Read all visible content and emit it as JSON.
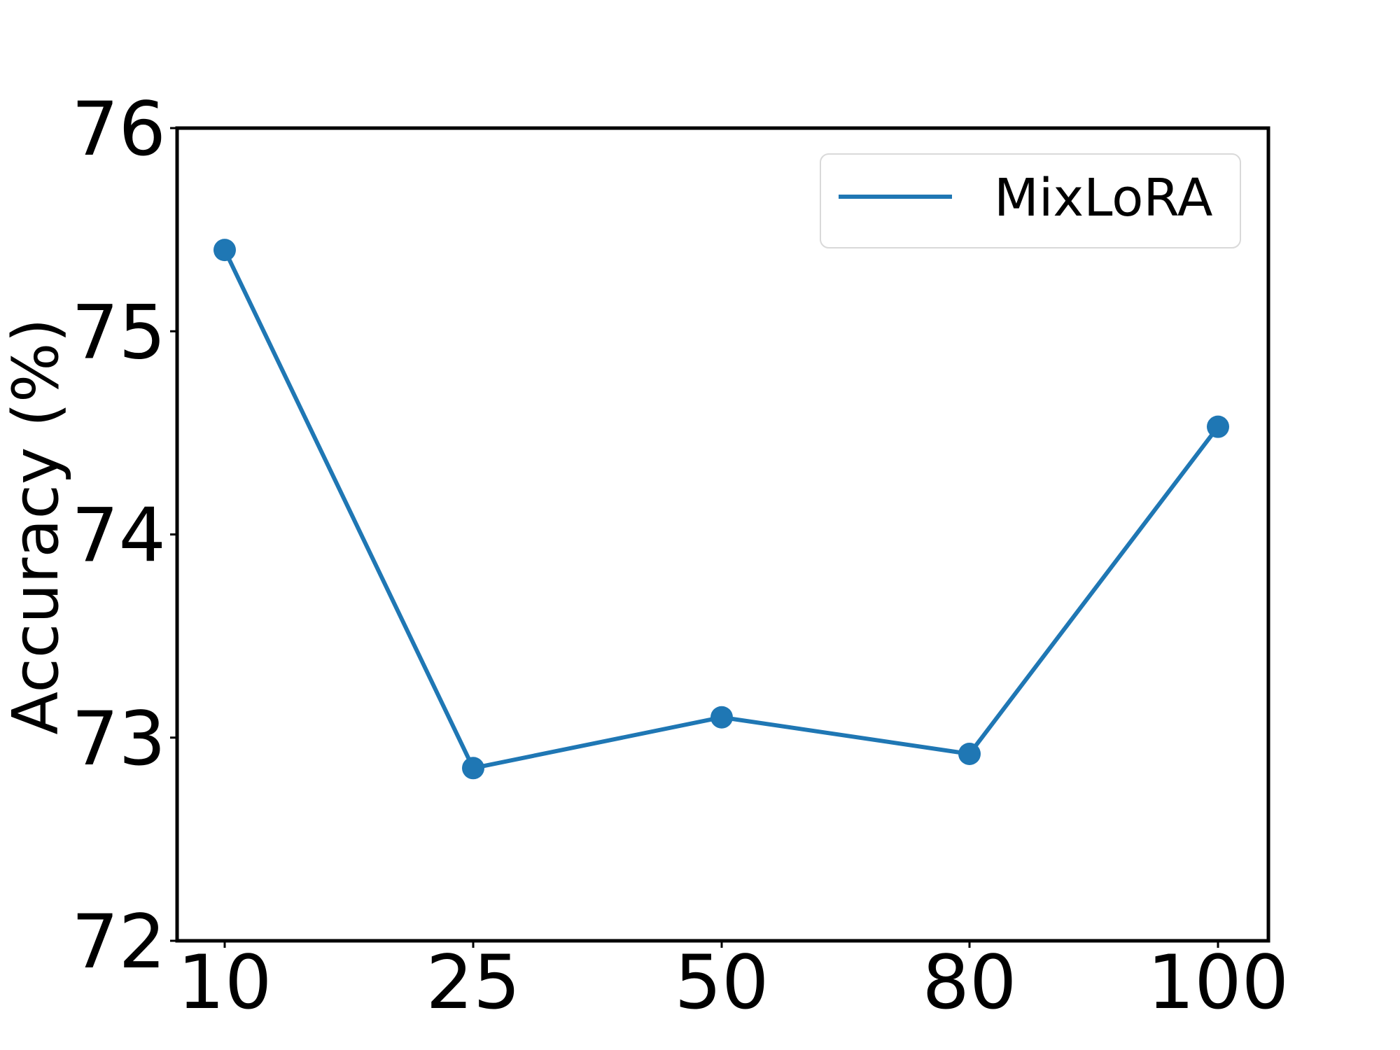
{
  "chart_data": {
    "type": "line",
    "title": "",
    "xlabel": "",
    "ylabel": "Accuracy (%)",
    "x": [
      10,
      25,
      50,
      80,
      100
    ],
    "x_tick_labels": [
      "10",
      "25",
      "50",
      "80",
      "100"
    ],
    "xscale": "categorical",
    "ylim": [
      72,
      76
    ],
    "y_ticks": [
      72,
      73,
      74,
      75,
      76
    ],
    "y_tick_labels": [
      "72",
      "73",
      "74",
      "75",
      "76"
    ],
    "grid": false,
    "legend_position": "top-right",
    "series": [
      {
        "name": "MixLoRA",
        "color": "#1f77b4",
        "marker": "circle",
        "values": [
          75.4,
          72.85,
          73.1,
          72.92,
          74.53
        ]
      }
    ]
  }
}
